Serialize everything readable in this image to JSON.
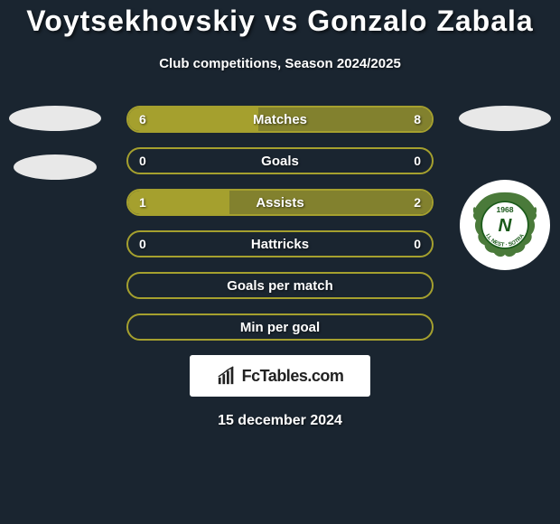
{
  "title": "Voytsekhovskiy vs Gonzalo Zabala",
  "subtitle": "Club competitions, Season 2024/2025",
  "date": "15 december 2024",
  "fctables_label": "FcTables.com",
  "accent_color": "#a5a02e",
  "border_empty_color": "#a5a02e",
  "bars": [
    {
      "label": "Matches",
      "left_val": "6",
      "right_val": "8",
      "left_pct": 42.8,
      "right_pct": 57.2,
      "show_vals": true
    },
    {
      "label": "Goals",
      "left_val": "0",
      "right_val": "0",
      "left_pct": 0,
      "right_pct": 0,
      "show_vals": true
    },
    {
      "label": "Assists",
      "left_val": "1",
      "right_val": "2",
      "left_pct": 33.3,
      "right_pct": 66.7,
      "show_vals": true
    },
    {
      "label": "Hattricks",
      "left_val": "0",
      "right_val": "0",
      "left_pct": 0,
      "right_pct": 0,
      "show_vals": true
    },
    {
      "label": "Goals per match",
      "left_val": "",
      "right_val": "",
      "left_pct": 0,
      "right_pct": 0,
      "show_vals": false
    },
    {
      "label": "Min per goal",
      "left_val": "",
      "right_val": "",
      "left_pct": 0,
      "right_pct": 0,
      "show_vals": false
    }
  ],
  "right_badge": {
    "year": "1968",
    "text_top": "I.L NEST",
    "text_bottom": "SOTRA"
  }
}
